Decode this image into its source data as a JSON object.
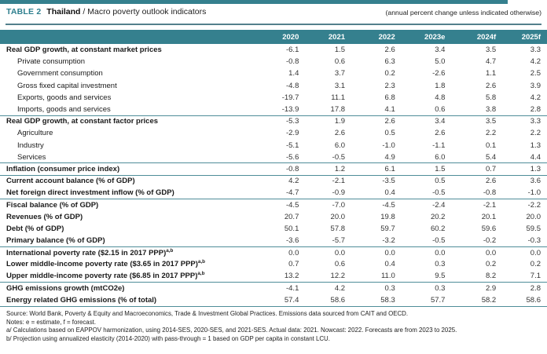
{
  "header": {
    "table_label": "TABLE 2",
    "country": "Thailand",
    "separator": " / ",
    "subtitle": "Macro poverty outlook indicators",
    "right_note": "(annual percent change unless indicated otherwise)"
  },
  "colors": {
    "teal_header": "#35808e",
    "rule_line": "#4f8d99",
    "text": "#1a1a1a"
  },
  "table": {
    "columns": [
      "2020",
      "2021",
      "2022",
      "2023e",
      "2024f",
      "2025f"
    ],
    "rows": [
      {
        "label": "Real GDP growth, at constant market prices",
        "bold": true,
        "indent": false,
        "sup": "",
        "values": [
          "-6.1",
          "1.5",
          "2.6",
          "3.4",
          "3.5",
          "3.3"
        ],
        "rule_below": false
      },
      {
        "label": "Private consumption",
        "bold": false,
        "indent": true,
        "sup": "",
        "values": [
          "-0.8",
          "0.6",
          "6.3",
          "5.0",
          "4.7",
          "4.2"
        ],
        "rule_below": false
      },
      {
        "label": "Government consumption",
        "bold": false,
        "indent": true,
        "sup": "",
        "values": [
          "1.4",
          "3.7",
          "0.2",
          "-2.6",
          "1.1",
          "2.5"
        ],
        "rule_below": false
      },
      {
        "label": "Gross fixed capital investment",
        "bold": false,
        "indent": true,
        "sup": "",
        "values": [
          "-4.8",
          "3.1",
          "2.3",
          "1.8",
          "2.6",
          "3.9"
        ],
        "rule_below": false
      },
      {
        "label": "Exports, goods and services",
        "bold": false,
        "indent": true,
        "sup": "",
        "values": [
          "-19.7",
          "11.1",
          "6.8",
          "4.8",
          "5.8",
          "4.2"
        ],
        "rule_below": false
      },
      {
        "label": "Imports, goods and services",
        "bold": false,
        "indent": true,
        "sup": "",
        "values": [
          "-13.9",
          "17.8",
          "4.1",
          "0.6",
          "3.8",
          "2.8"
        ],
        "rule_below": true
      },
      {
        "label": "Real GDP growth, at constant factor prices",
        "bold": true,
        "indent": false,
        "sup": "",
        "values": [
          "-5.3",
          "1.9",
          "2.6",
          "3.4",
          "3.5",
          "3.3"
        ],
        "rule_below": false
      },
      {
        "label": "Agriculture",
        "bold": false,
        "indent": true,
        "sup": "",
        "values": [
          "-2.9",
          "2.6",
          "0.5",
          "2.6",
          "2.2",
          "2.2"
        ],
        "rule_below": false
      },
      {
        "label": "Industry",
        "bold": false,
        "indent": true,
        "sup": "",
        "values": [
          "-5.1",
          "6.0",
          "-1.0",
          "-1.1",
          "0.1",
          "1.3"
        ],
        "rule_below": false
      },
      {
        "label": "Services",
        "bold": false,
        "indent": true,
        "sup": "",
        "values": [
          "-5.6",
          "-0.5",
          "4.9",
          "6.0",
          "5.4",
          "4.4"
        ],
        "rule_below": true
      },
      {
        "label": "Inflation (consumer price index)",
        "bold": true,
        "indent": false,
        "sup": "",
        "values": [
          "-0.8",
          "1.2",
          "6.1",
          "1.5",
          "0.7",
          "1.3"
        ],
        "rule_below": true
      },
      {
        "label": "Current account balance (% of GDP)",
        "bold": true,
        "indent": false,
        "sup": "",
        "values": [
          "4.2",
          "-2.1",
          "-3.5",
          "0.5",
          "2.6",
          "3.6"
        ],
        "rule_below": false
      },
      {
        "label": "Net foreign direct investment inflow (% of GDP)",
        "bold": true,
        "indent": false,
        "sup": "",
        "values": [
          "-4.7",
          "-0.9",
          "0.4",
          "-0.5",
          "-0.8",
          "-1.0"
        ],
        "rule_below": true
      },
      {
        "label": "Fiscal balance (% of GDP)",
        "bold": true,
        "indent": false,
        "sup": "",
        "values": [
          "-4.5",
          "-7.0",
          "-4.5",
          "-2.4",
          "-2.1",
          "-2.2"
        ],
        "rule_below": false
      },
      {
        "label": "Revenues (% of GDP)",
        "bold": true,
        "indent": false,
        "sup": "",
        "values": [
          "20.7",
          "20.0",
          "19.8",
          "20.2",
          "20.1",
          "20.0"
        ],
        "rule_below": false
      },
      {
        "label": "Debt (% of GDP)",
        "bold": true,
        "indent": false,
        "sup": "",
        "values": [
          "50.1",
          "57.8",
          "59.7",
          "60.2",
          "59.6",
          "59.5"
        ],
        "rule_below": false
      },
      {
        "label": "Primary balance (% of GDP)",
        "bold": true,
        "indent": false,
        "sup": "",
        "values": [
          "-3.6",
          "-5.7",
          "-3.2",
          "-0.5",
          "-0.2",
          "-0.3"
        ],
        "rule_below": true
      },
      {
        "label": "International poverty rate ($2.15 in 2017 PPP)",
        "bold": true,
        "indent": false,
        "sup": "a,b",
        "values": [
          "0.0",
          "0.0",
          "0.0",
          "0.0",
          "0.0",
          "0.0"
        ],
        "rule_below": false
      },
      {
        "label": "Lower middle-income poverty rate ($3.65 in 2017 PPP)",
        "bold": true,
        "indent": false,
        "sup": "a,b",
        "values": [
          "0.7",
          "0.6",
          "0.4",
          "0.3",
          "0.2",
          "0.2"
        ],
        "rule_below": false
      },
      {
        "label": "Upper middle-income poverty rate ($6.85 in 2017 PPP)",
        "bold": true,
        "indent": false,
        "sup": "a,b",
        "values": [
          "13.2",
          "12.2",
          "11.0",
          "9.5",
          "8.2",
          "7.1"
        ],
        "rule_below": true
      },
      {
        "label": "GHG emissions growth (mtCO2e)",
        "bold": true,
        "indent": false,
        "sup": "",
        "values": [
          "-4.1",
          "4.2",
          "0.3",
          "0.3",
          "2.9",
          "2.8"
        ],
        "rule_below": false
      },
      {
        "label": "Energy related GHG emissions (% of total)",
        "bold": true,
        "indent": false,
        "sup": "",
        "values": [
          "57.4",
          "58.6",
          "58.3",
          "57.7",
          "58.2",
          "58.6"
        ],
        "rule_below": true
      }
    ]
  },
  "notes": [
    "Source: World Bank, Poverty & Equity and Macroeconomics, Trade & Investment Global Practices. Emissions data sourced from CAIT and OECD.",
    "Notes: e = estimate, f = forecast.",
    "a/ Calculations based on EAPPOV harmonization, using 2014-SES, 2020-SES, and 2021-SES. Actual data: 2021. Nowcast: 2022. Forecasts are from 2023 to 2025.",
    "b/ Projection using annualized elasticity (2014-2020) with pass-through = 1 based on GDP per capita in constant LCU."
  ]
}
